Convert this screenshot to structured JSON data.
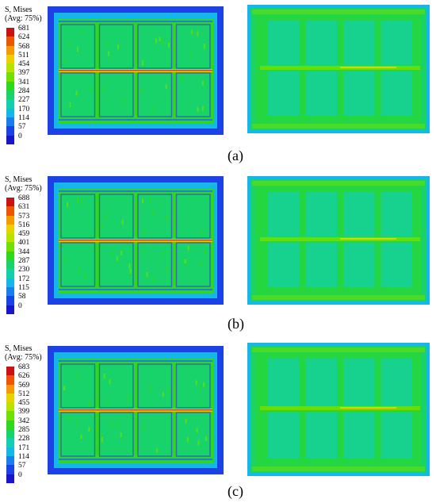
{
  "figure": {
    "rows": [
      {
        "id": "a",
        "caption": "(a)",
        "legend": {
          "title_line1": "S, Mises",
          "title_line2": "(Avg: 75%)",
          "ticks": [
            "681",
            "624",
            "568",
            "511",
            "454",
            "397",
            "341",
            "284",
            "227",
            "170",
            "114",
            "57",
            "0"
          ]
        }
      },
      {
        "id": "b",
        "caption": "(b)",
        "legend": {
          "title_line1": "S, Mises",
          "title_line2": "(Avg: 75%)",
          "ticks": [
            "688",
            "631",
            "573",
            "516",
            "459",
            "401",
            "344",
            "287",
            "230",
            "172",
            "115",
            "58",
            "0"
          ]
        }
      },
      {
        "id": "c",
        "caption": "(c)",
        "legend": {
          "title_line1": "S, Mises",
          "title_line2": "(Avg: 75%)",
          "ticks": [
            "683",
            "626",
            "569",
            "512",
            "455",
            "399",
            "342",
            "285",
            "228",
            "171",
            "114",
            "57",
            "0"
          ]
        }
      }
    ],
    "colormap": [
      "#cc1111",
      "#ee5500",
      "#f39b00",
      "#e8d200",
      "#b6e400",
      "#6fe000",
      "#2fd81f",
      "#17d36a",
      "#12cfb0",
      "#15b6e8",
      "#1b7ef0",
      "#1c42e6",
      "#1a16c8"
    ]
  }
}
